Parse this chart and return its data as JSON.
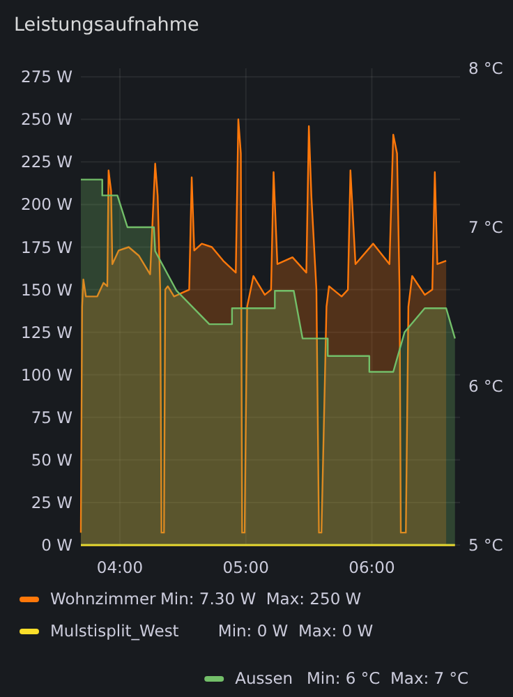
{
  "chart_data": {
    "type": "area",
    "title": "Leistungsaufnahme",
    "xlim": [
      3.69,
      6.7
    ],
    "xticks": [
      {
        "value": 4,
        "label": "04:00"
      },
      {
        "value": 5,
        "label": "05:00"
      },
      {
        "value": 6,
        "label": "06:00"
      }
    ],
    "ylim": [
      0,
      280
    ],
    "yticks": [
      {
        "value": 0,
        "label": "0 W"
      },
      {
        "value": 25,
        "label": "25 W"
      },
      {
        "value": 50,
        "label": "50 W"
      },
      {
        "value": 75,
        "label": "75 W"
      },
      {
        "value": 100,
        "label": "100 W"
      },
      {
        "value": 125,
        "label": "125 W"
      },
      {
        "value": 150,
        "label": "150 W"
      },
      {
        "value": 175,
        "label": "175 W"
      },
      {
        "value": 200,
        "label": "200 W"
      },
      {
        "value": 225,
        "label": "225 W"
      },
      {
        "value": 250,
        "label": "250 W"
      },
      {
        "value": 275,
        "label": "275 W"
      }
    ],
    "y2lim": [
      5,
      8
    ],
    "y2ticks": [
      {
        "value": 5,
        "label": "5 °C"
      },
      {
        "value": 6,
        "label": "6 °C"
      },
      {
        "value": 7,
        "label": "7 °C"
      },
      {
        "value": 8,
        "label": "8 °C"
      }
    ],
    "grid": true,
    "legend": "bottom",
    "annotations": [
      "Min: 7.30 W  Max: 250 W",
      "Min: 0 W  Max: 0 W",
      "Min: 6 °C  Max: 7 °C"
    ],
    "series": [
      {
        "name": "Wohnzimmer",
        "color": "#ff780a",
        "x": [
          3.69,
          3.7,
          3.71,
          3.73,
          3.82,
          3.87,
          3.9,
          3.91,
          3.93,
          3.94,
          3.99,
          4.07,
          4.15,
          4.24,
          4.28,
          4.3,
          4.32,
          4.33,
          4.35,
          4.36,
          4.38,
          4.43,
          4.49,
          4.55,
          4.57,
          4.59,
          4.65,
          4.73,
          4.82,
          4.92,
          4.94,
          4.96,
          4.97,
          4.99,
          5.01,
          5.06,
          5.15,
          5.2,
          5.22,
          5.25,
          5.37,
          5.48,
          5.5,
          5.52,
          5.56,
          5.58,
          5.6,
          5.64,
          5.66,
          5.76,
          5.81,
          5.83,
          5.87,
          6.01,
          6.14,
          6.17,
          6.2,
          6.22,
          6.23,
          6.27,
          6.29,
          6.32,
          6.42,
          6.48,
          6.5,
          6.52,
          6.59
        ],
        "values": [
          7.3,
          140,
          156,
          146,
          146,
          154,
          152,
          220,
          208,
          165,
          173,
          175,
          170,
          159,
          224,
          205,
          150,
          7.3,
          7.3,
          150,
          152,
          146,
          148,
          150,
          216,
          173,
          177,
          175,
          167,
          160,
          250,
          230,
          7.3,
          7.3,
          140,
          158,
          147,
          150,
          219,
          165,
          169,
          160,
          246,
          205,
          150,
          7.3,
          7.3,
          140,
          152,
          146,
          150,
          220,
          165,
          177,
          165,
          241,
          230,
          150,
          7.3,
          7.3,
          140,
          158,
          147,
          150,
          219,
          165,
          167
        ]
      },
      {
        "name": "Mulstisplit_West",
        "type": "line",
        "color": "#fade2a",
        "x": [
          3.69,
          6.66
        ],
        "values": [
          0,
          0
        ]
      },
      {
        "name": "Aussen",
        "axis": "y2",
        "color": "#73bf69",
        "x": [
          3.69,
          3.86,
          3.86,
          3.98,
          4.06,
          4.27,
          4.28,
          4.45,
          4.71,
          4.89,
          4.89,
          5.23,
          5.23,
          5.38,
          5.45,
          5.65,
          5.65,
          5.98,
          5.98,
          6.17,
          6.26,
          6.42,
          6.59,
          6.66
        ],
        "values": [
          7.3,
          7.3,
          7.2,
          7.2,
          7.0,
          7.0,
          6.85,
          6.6,
          6.39,
          6.39,
          6.49,
          6.49,
          6.6,
          6.6,
          6.3,
          6.3,
          6.19,
          6.19,
          6.09,
          6.09,
          6.34,
          6.49,
          6.49,
          6.3
        ]
      }
    ]
  }
}
